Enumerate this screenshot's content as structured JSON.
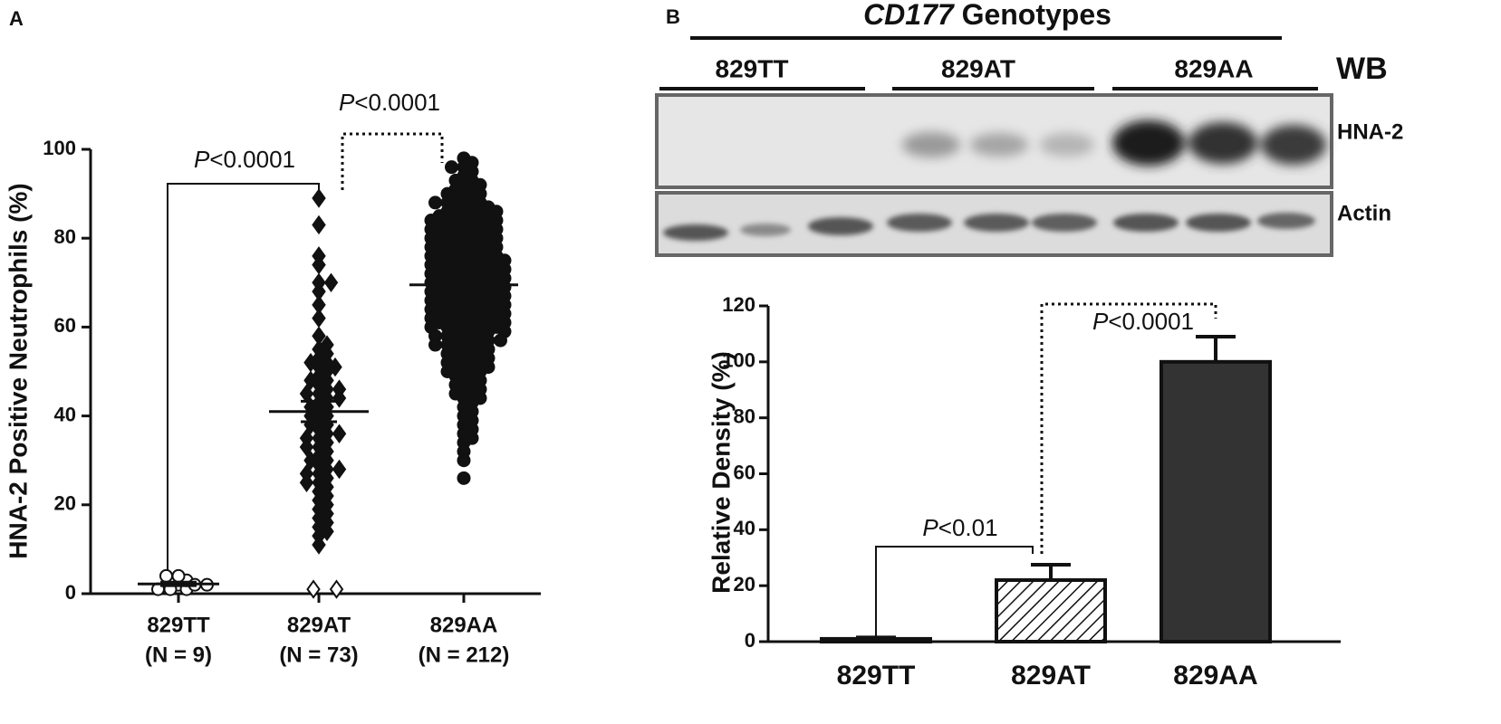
{
  "chart_data": [
    {
      "type": "dotplot",
      "panel": "A",
      "ylabel": "HNA-2 Positive Neutrophils (%)",
      "categories": [
        "829TT",
        "829AT",
        "829AA"
      ],
      "n_labels": [
        "(N = 9)",
        "(N = 73)",
        "(N = 212)"
      ],
      "groups": [
        {
          "marker": "circle",
          "filled": false,
          "values": [
            2,
            1,
            3,
            4,
            4,
            1,
            2,
            1,
            2
          ]
        },
        {
          "marker": "diamond",
          "filled": true,
          "values": [
            89,
            83,
            76,
            74,
            70,
            70,
            68,
            65,
            62,
            58,
            55,
            54,
            53,
            52,
            52,
            51,
            51,
            50,
            49,
            48,
            47,
            46,
            45,
            45,
            44,
            44,
            43,
            42,
            42,
            41,
            40,
            40,
            39,
            38,
            38,
            37,
            36,
            35,
            35,
            34,
            33,
            32,
            31,
            30,
            30,
            29,
            28,
            27,
            27,
            26,
            25,
            24,
            23,
            22,
            21,
            20,
            19,
            18,
            17,
            16,
            15,
            14,
            13,
            11,
            48,
            56,
            36,
            28,
            33,
            25,
            46
          ],
          "open_values": [
            1,
            1
          ]
        },
        {
          "marker": "circle",
          "filled": true,
          "values": [
            98,
            97,
            96,
            96,
            95,
            94,
            93,
            93,
            92,
            92,
            91,
            91,
            90,
            90,
            90,
            89,
            89,
            88,
            88,
            88,
            87,
            87,
            87,
            86,
            86,
            86,
            85,
            85,
            85,
            85,
            84,
            84,
            84,
            84,
            83,
            83,
            83,
            83,
            82,
            82,
            82,
            82,
            81,
            81,
            81,
            81,
            80,
            80,
            80,
            80,
            79,
            79,
            79,
            79,
            78,
            78,
            78,
            78,
            77,
            77,
            77,
            77,
            76,
            76,
            76,
            76,
            75,
            75,
            75,
            75,
            74,
            74,
            74,
            74,
            73,
            73,
            73,
            73,
            72,
            72,
            72,
            72,
            71,
            71,
            71,
            71,
            70,
            70,
            70,
            70,
            69,
            69,
            69,
            69,
            68,
            68,
            68,
            68,
            67,
            67,
            67,
            67,
            66,
            66,
            66,
            66,
            65,
            65,
            65,
            65,
            64,
            64,
            64,
            64,
            63,
            63,
            63,
            63,
            62,
            62,
            62,
            62,
            61,
            61,
            61,
            61,
            60,
            60,
            60,
            60,
            59,
            59,
            59,
            58,
            58,
            58,
            57,
            57,
            57,
            56,
            56,
            56,
            55,
            55,
            55,
            54,
            54,
            54,
            53,
            53,
            53,
            52,
            52,
            52,
            51,
            51,
            51,
            50,
            50,
            50,
            49,
            49,
            48,
            48,
            47,
            47,
            46,
            46,
            45,
            45,
            44,
            44,
            43,
            42,
            41,
            40,
            39,
            38,
            37,
            36,
            35,
            34,
            32,
            30,
            26,
            86,
            84,
            80,
            78,
            76,
            74,
            72,
            70,
            68,
            66,
            64,
            62,
            60,
            58,
            56,
            75,
            73,
            71,
            69,
            67,
            65,
            63,
            61,
            59,
            57,
            88,
            82
          ]
        }
      ],
      "means": [
        2.2,
        41,
        69.5
      ],
      "sem": [
        0.4,
        2.3,
        1.1
      ],
      "ylim": [
        0,
        100
      ],
      "yticks": [
        0,
        20,
        40,
        60,
        80,
        100
      ],
      "annotations": [
        "P<0.0001",
        "P<0.0001"
      ]
    },
    {
      "type": "bar",
      "panel": "B",
      "blot": {
        "title": "CD177 Genotypes",
        "method": "WB",
        "lanes": [
          "829TT",
          "829AT",
          "829AA"
        ],
        "rows": [
          "HNA-2",
          "Actin"
        ]
      },
      "ylabel": "Relative Density (%)",
      "categories": [
        "829TT",
        "829AT",
        "829AA"
      ],
      "values": [
        1,
        22,
        100
      ],
      "errors": [
        0.5,
        5.5,
        9
      ],
      "colors": [
        "#ffffff",
        "#ffffff",
        "#333333"
      ],
      "patterns": [
        "solid",
        "hatch",
        "solid"
      ],
      "ylim": [
        0,
        120
      ],
      "yticks": [
        0,
        20,
        40,
        60,
        80,
        100,
        120
      ],
      "annotations": [
        "P<0.01",
        "P<0.0001"
      ]
    }
  ]
}
